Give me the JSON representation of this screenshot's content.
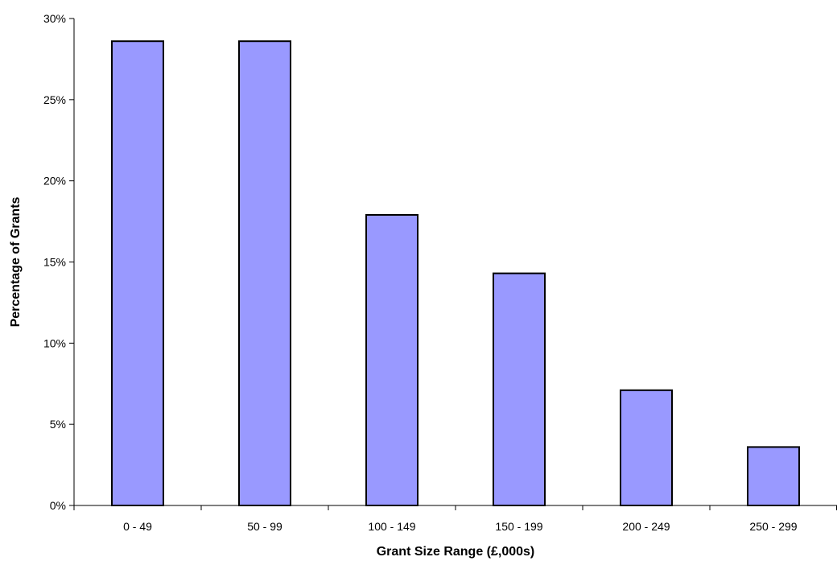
{
  "chart_data": {
    "type": "bar",
    "title": "",
    "xlabel": "Grant Size Range (£,000s)",
    "ylabel": "Percentage of Grants",
    "categories": [
      "0 - 49",
      "50 - 99",
      "100 - 149",
      "150 - 199",
      "200 - 249",
      "250 - 299"
    ],
    "values": [
      28.6,
      28.6,
      17.9,
      14.3,
      7.1,
      3.6
    ],
    "ylim": [
      0,
      30
    ],
    "y_ticks": [
      0,
      5,
      10,
      15,
      20,
      25,
      30
    ],
    "y_tick_labels": [
      "0%",
      "5%",
      "10%",
      "15%",
      "20%",
      "25%",
      "30%"
    ],
    "grid": false,
    "legend": "none",
    "bar_color": "#9999ff",
    "bar_edge_color": "#000000"
  }
}
